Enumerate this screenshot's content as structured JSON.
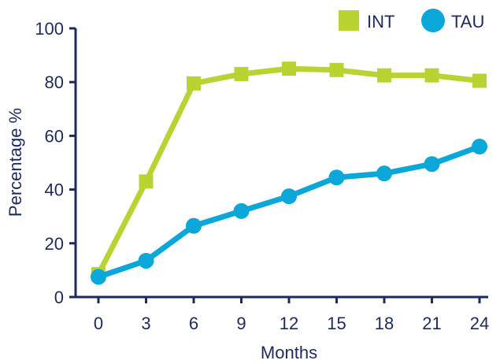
{
  "chart_data": {
    "type": "line",
    "title": "",
    "xlabel": "Months",
    "ylabel": "Percentage %",
    "x": [
      0,
      3,
      6,
      9,
      12,
      15,
      18,
      21,
      24
    ],
    "xticks": [
      "0",
      "3",
      "6",
      "9",
      "12",
      "15",
      "18",
      "21",
      "24"
    ],
    "yticks": [
      "0",
      "20",
      "40",
      "60",
      "80",
      "100"
    ],
    "ylim": [
      0,
      100
    ],
    "xlim": [
      0,
      24
    ],
    "grid": false,
    "legend": "top-right",
    "series": [
      {
        "name": "INT",
        "marker": "square",
        "color": "#b9d432",
        "values": [
          8.5,
          43,
          79.5,
          83,
          85,
          84.5,
          82.5,
          82.5,
          80.5
        ]
      },
      {
        "name": "TAU",
        "marker": "circle",
        "color": "#0aa7d8",
        "values": [
          7.5,
          13.5,
          26.5,
          32,
          37.5,
          44.5,
          46,
          49.5,
          56
        ]
      }
    ],
    "axis_color": "#1d2a5a"
  }
}
